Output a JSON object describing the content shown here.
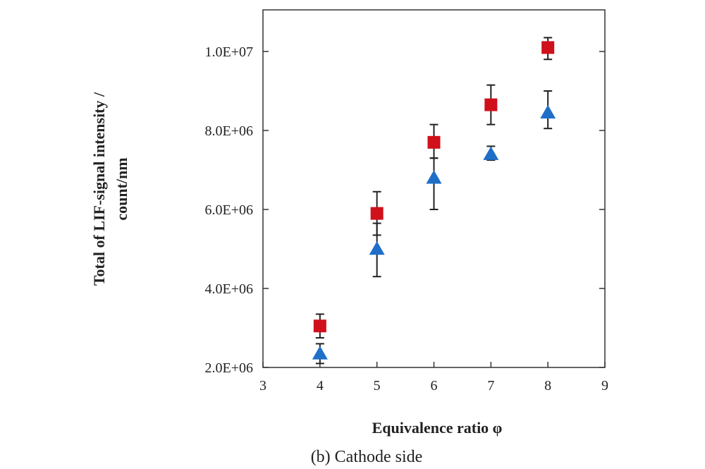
{
  "chart_data": {
    "type": "scatter",
    "title": "",
    "caption": "(b) Cathode side",
    "xlabel": "Equivalence ratio φ",
    "ylabel_line1": "Total of LIF-signal intensity /",
    "ylabel_line2": "count/nm",
    "xlim": [
      3,
      9
    ],
    "ylim": [
      2000000,
      11000000
    ],
    "xticks": [
      3,
      4,
      5,
      6,
      7,
      8,
      9
    ],
    "xtick_labels": [
      "3",
      "4",
      "5",
      "6",
      "7",
      "8",
      "9"
    ],
    "yticks": [
      2000000,
      4000000,
      6000000,
      8000000,
      10000000
    ],
    "ytick_labels": [
      "2.0E+06",
      "4.0E+06",
      "6.0E+06",
      "8.0E+06",
      "1.0E+07"
    ],
    "grid": false,
    "series": [
      {
        "name": "square series",
        "marker": "square",
        "color": "#d0101a",
        "points": [
          {
            "x": 4,
            "y": 3050000,
            "err_low": 2750000,
            "err_high": 3350000
          },
          {
            "x": 5,
            "y": 5900000,
            "err_low": 5350000,
            "err_high": 6450000
          },
          {
            "x": 6,
            "y": 7700000,
            "err_low": 7300000,
            "err_high": 8150000
          },
          {
            "x": 7,
            "y": 8650000,
            "err_low": 8150000,
            "err_high": 9150000
          },
          {
            "x": 8,
            "y": 10100000,
            "err_low": 9800000,
            "err_high": 10350000
          }
        ]
      },
      {
        "name": "triangle series",
        "marker": "triangle",
        "color": "#1f6fc8",
        "points": [
          {
            "x": 4,
            "y": 2350000,
            "err_low": 2100000,
            "err_high": 2600000
          },
          {
            "x": 5,
            "y": 5000000,
            "err_low": 4300000,
            "err_high": 5650000
          },
          {
            "x": 6,
            "y": 6800000,
            "err_low": 6000000,
            "err_high": 7300000
          },
          {
            "x": 7,
            "y": 7400000,
            "err_low": 7250000,
            "err_high": 7600000
          },
          {
            "x": 8,
            "y": 8450000,
            "err_low": 8050000,
            "err_high": 9000000
          }
        ]
      }
    ]
  }
}
